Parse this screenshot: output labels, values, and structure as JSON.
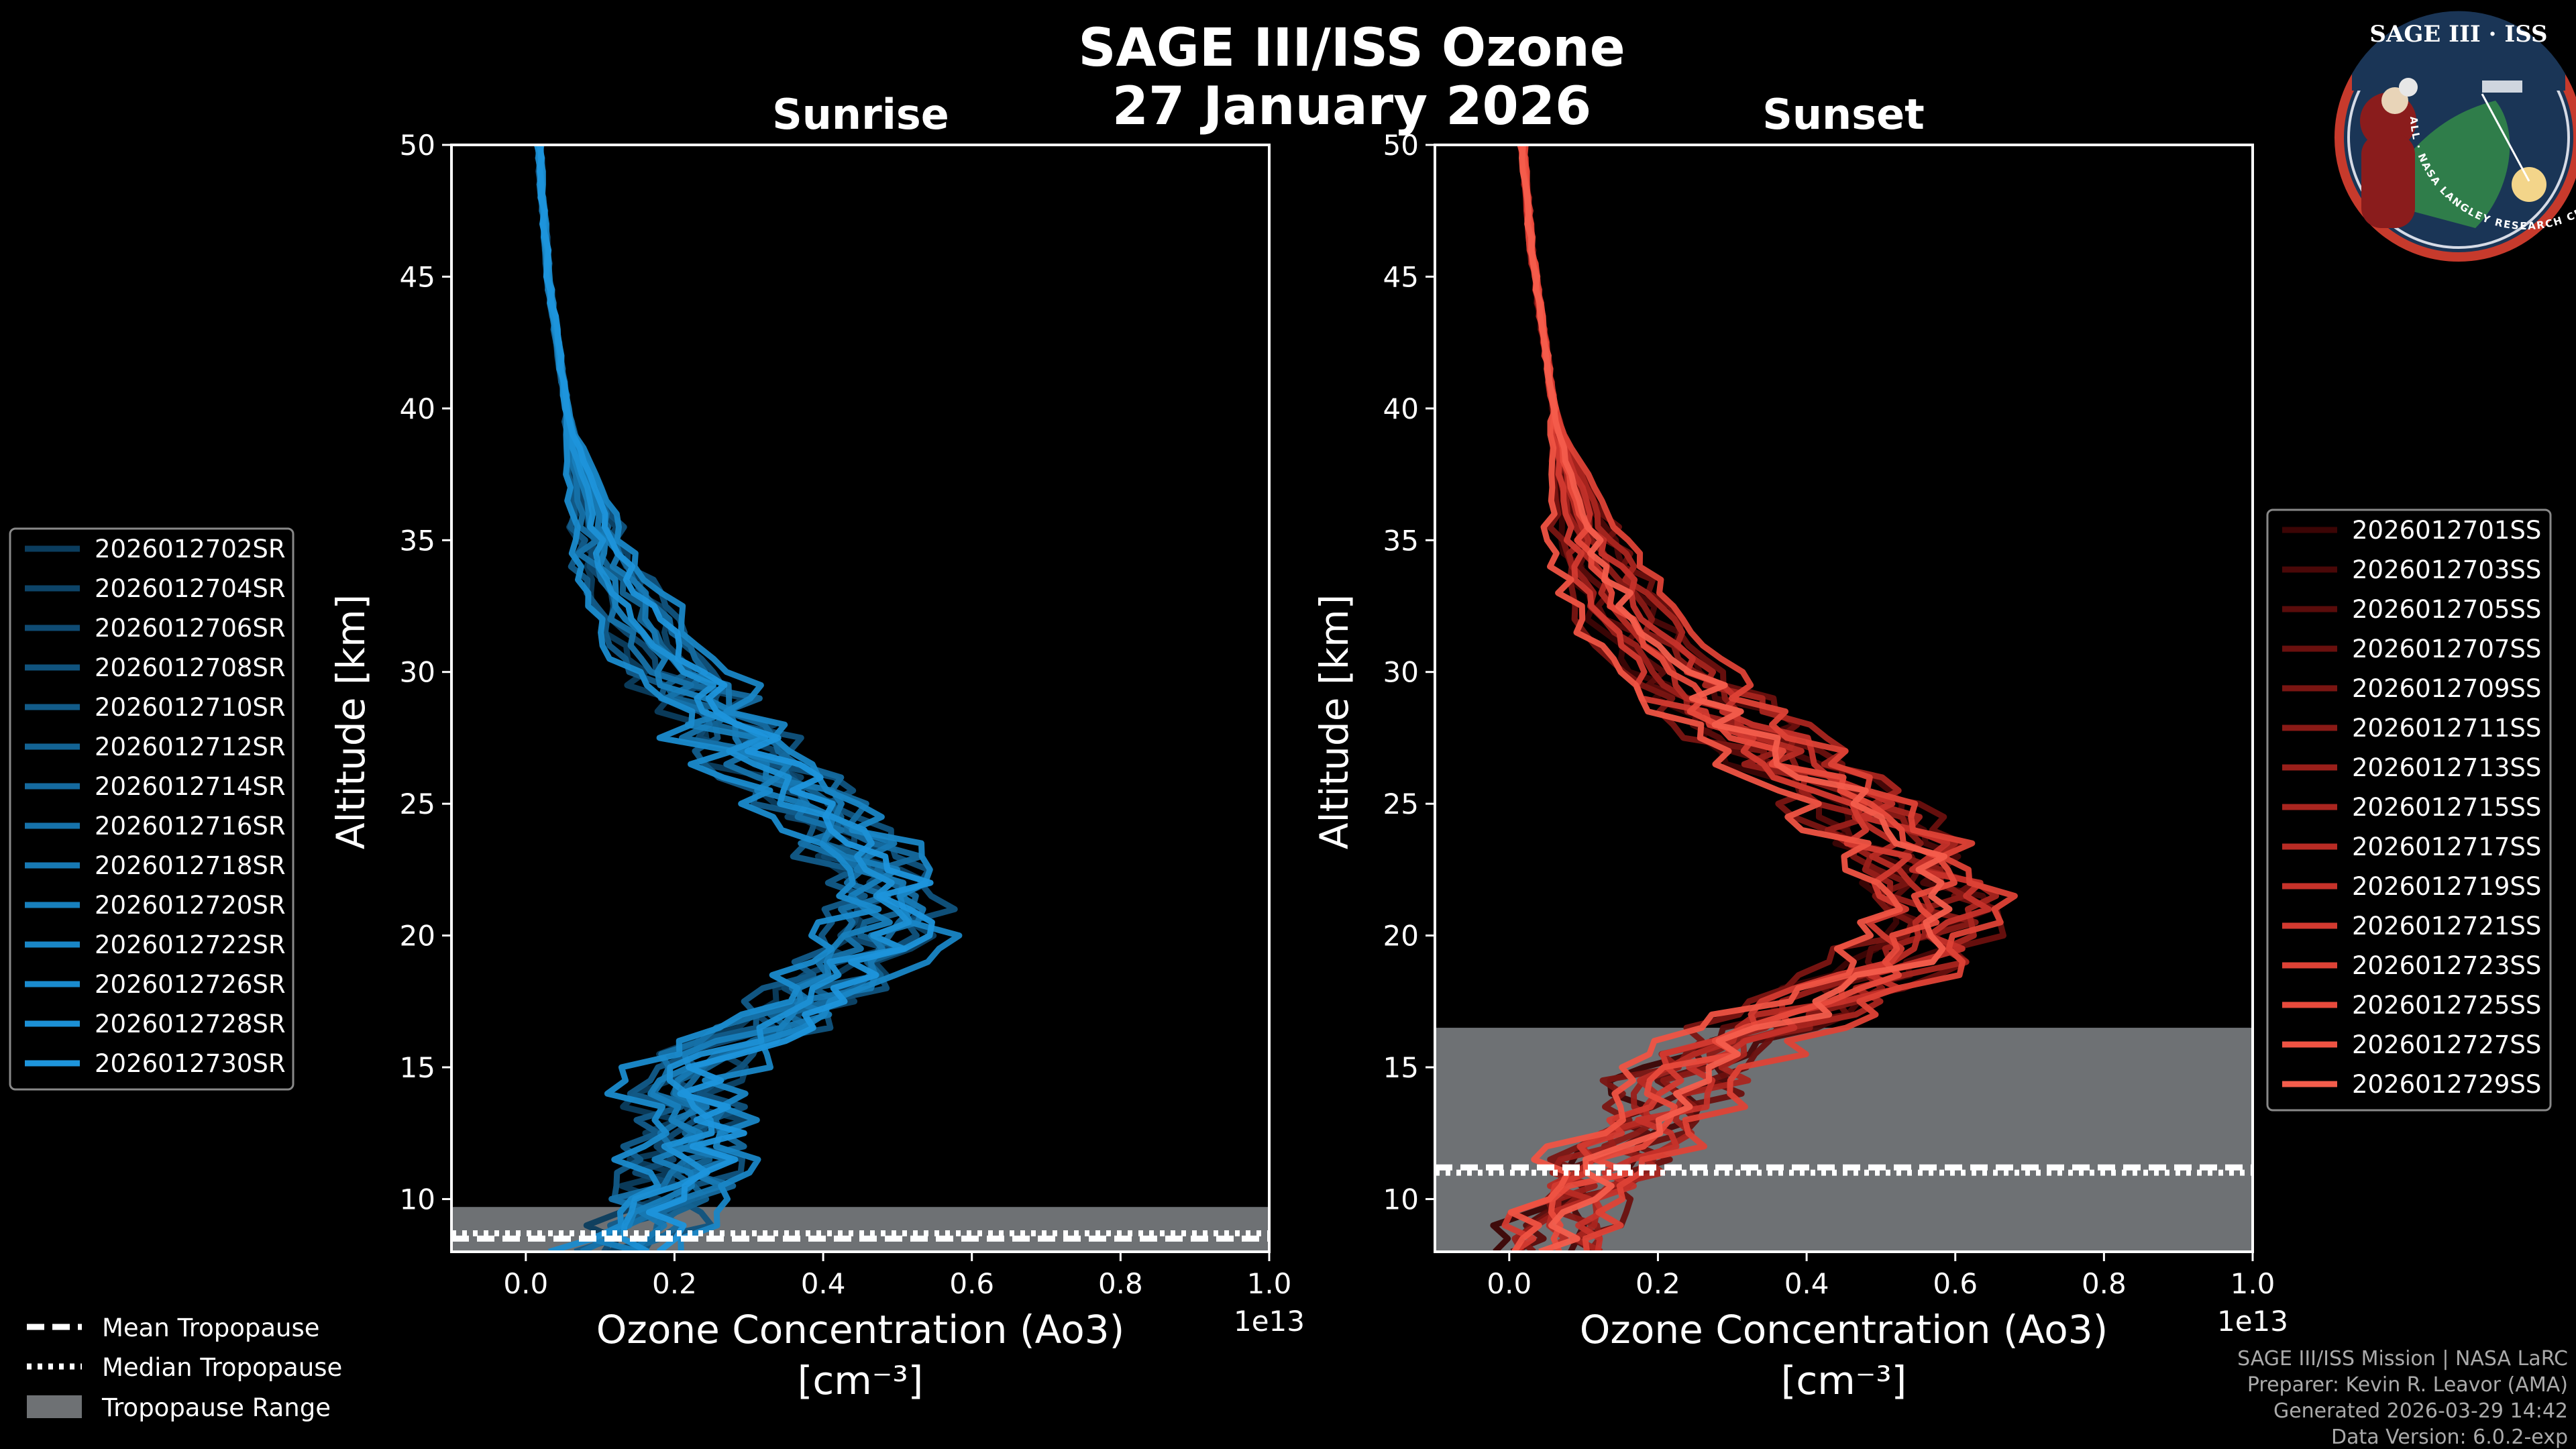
{
  "figure": {
    "title_line1": "SAGE III/ISS Ozone",
    "title_line2": "27 January 2026",
    "logo": {
      "top_text": "SAGE III · ISS",
      "ring_text": "BALL · NASA LANGLEY RESEARCH CENTER · TAS-I · ESA"
    },
    "footer": [
      "SAGE III/ISS Mission | NASA LaRC",
      "Preparer: Kevin R. Leavor (AMA)",
      "Generated 2026-03-29 14:42",
      "Data Version: 6.0.2-exp"
    ],
    "tropo_legend": [
      "Mean Tropopause",
      "Median Tropopause",
      "Tropopause Range"
    ],
    "colors": {
      "sunrise": "#1f8fd6",
      "sunset": "#f05a48",
      "tropo_band": "#6e7174",
      "background": "#000000"
    }
  },
  "chart_data": [
    {
      "type": "line",
      "title": "Sunrise",
      "xlabel": "Ozone Concentration (Ao3)",
      "xunit": "[cm⁻³]",
      "xscale_label": "1e13",
      "ylabel": "Altitude [km]",
      "xlim": [
        -0.1,
        1.0
      ],
      "ylim": [
        8,
        50
      ],
      "xticks": [
        0.0,
        0.2,
        0.4,
        0.6,
        0.8,
        1.0
      ],
      "xtick_labels": [
        "0.0",
        "0.2",
        "0.4",
        "0.6",
        "0.8",
        "1.0"
      ],
      "yticks": [
        10,
        15,
        20,
        25,
        30,
        35,
        40,
        45,
        50
      ],
      "tropopause": {
        "mean": 8.5,
        "median": 8.7,
        "range": [
          8.0,
          9.7
        ]
      },
      "base_profile": {
        "altitude": [
          8,
          9,
          10,
          11,
          12,
          13,
          14,
          15,
          16,
          17,
          18,
          19,
          20,
          21,
          22,
          23,
          24,
          25,
          26,
          27,
          28,
          29,
          30,
          31,
          32,
          33,
          34,
          35,
          36,
          37,
          38,
          39,
          40,
          41,
          42,
          43,
          44,
          45,
          46,
          47,
          48,
          49,
          50
        ],
        "ozone": [
          0.12,
          0.16,
          0.19,
          0.21,
          0.22,
          0.22,
          0.21,
          0.23,
          0.28,
          0.35,
          0.41,
          0.45,
          0.48,
          0.49,
          0.48,
          0.45,
          0.42,
          0.38,
          0.34,
          0.3,
          0.26,
          0.23,
          0.2,
          0.17,
          0.15,
          0.13,
          0.11,
          0.1,
          0.09,
          0.08,
          0.07,
          0.06,
          0.055,
          0.05,
          0.045,
          0.04,
          0.035,
          0.03,
          0.028,
          0.025,
          0.022,
          0.02,
          0.018
        ]
      },
      "series": [
        {
          "name": "2026012702SR",
          "offset": -0.04,
          "color": "#0b3d5e"
        },
        {
          "name": "2026012704SR",
          "offset": 0.03,
          "color": "#0d4468"
        },
        {
          "name": "2026012706SR",
          "offset": -0.02,
          "color": "#0f4b73"
        },
        {
          "name": "2026012708SR",
          "offset": 0.05,
          "color": "#10537e"
        },
        {
          "name": "2026012710SR",
          "offset": -0.05,
          "color": "#125b89"
        },
        {
          "name": "2026012712SR",
          "offset": 0.01,
          "color": "#136394"
        },
        {
          "name": "2026012714SR",
          "offset": 0.04,
          "color": "#156a9f"
        },
        {
          "name": "2026012716SR",
          "offset": -0.03,
          "color": "#1672aa"
        },
        {
          "name": "2026012718SR",
          "offset": 0.02,
          "color": "#1779b4"
        },
        {
          "name": "2026012720SR",
          "offset": -0.01,
          "color": "#1880bd"
        },
        {
          "name": "2026012722SR",
          "offset": 0.06,
          "color": "#1986c6"
        },
        {
          "name": "2026012726SR",
          "offset": -0.06,
          "color": "#1a8bce"
        },
        {
          "name": "2026012728SR",
          "offset": 0.0,
          "color": "#1c90d5"
        },
        {
          "name": "2026012730SR",
          "offset": 0.03,
          "color": "#1e95dc"
        }
      ]
    },
    {
      "type": "line",
      "title": "Sunset",
      "xlabel": "Ozone Concentration (Ao3)",
      "xunit": "[cm⁻³]",
      "xscale_label": "1e13",
      "ylabel": "Altitude [km]",
      "xlim": [
        -0.1,
        1.0
      ],
      "ylim": [
        8,
        50
      ],
      "xticks": [
        0.0,
        0.2,
        0.4,
        0.6,
        0.8,
        1.0
      ],
      "xtick_labels": [
        "0.0",
        "0.2",
        "0.4",
        "0.6",
        "0.8",
        "1.0"
      ],
      "yticks": [
        10,
        15,
        20,
        25,
        30,
        35,
        40,
        45,
        50
      ],
      "tropopause": {
        "mean": 11.2,
        "median": 11.0,
        "range": [
          8.0,
          16.5
        ]
      },
      "base_profile": {
        "altitude": [
          8,
          9,
          10,
          11,
          12,
          13,
          14,
          15,
          16,
          17,
          18,
          19,
          20,
          21,
          22,
          23,
          24,
          25,
          26,
          27,
          28,
          29,
          30,
          31,
          32,
          33,
          34,
          35,
          36,
          37,
          38,
          39,
          40,
          41,
          42,
          43,
          44,
          45,
          46,
          47,
          48,
          49,
          50
        ],
        "ozone": [
          0.05,
          0.07,
          0.09,
          0.12,
          0.15,
          0.18,
          0.21,
          0.25,
          0.3,
          0.38,
          0.46,
          0.52,
          0.56,
          0.57,
          0.56,
          0.54,
          0.5,
          0.46,
          0.41,
          0.36,
          0.31,
          0.26,
          0.22,
          0.19,
          0.16,
          0.14,
          0.12,
          0.105,
          0.095,
          0.085,
          0.075,
          0.065,
          0.06,
          0.055,
          0.05,
          0.045,
          0.04,
          0.035,
          0.03,
          0.027,
          0.024,
          0.021,
          0.018
        ]
      },
      "series": [
        {
          "name": "2026012701SS",
          "offset": -0.05,
          "color": "#3c0505"
        },
        {
          "name": "2026012703SS",
          "offset": 0.04,
          "color": "#4a0808"
        },
        {
          "name": "2026012705SS",
          "offset": -0.02,
          "color": "#5a0c0b"
        },
        {
          "name": "2026012707SS",
          "offset": 0.06,
          "color": "#6a100e"
        },
        {
          "name": "2026012709SS",
          "offset": -0.06,
          "color": "#7a1512"
        },
        {
          "name": "2026012711SS",
          "offset": 0.02,
          "color": "#8a1a16"
        },
        {
          "name": "2026012713SS",
          "offset": -0.03,
          "color": "#9a1f1a"
        },
        {
          "name": "2026012715SS",
          "offset": 0.05,
          "color": "#a9251f"
        },
        {
          "name": "2026012717SS",
          "offset": -0.01,
          "color": "#b82b24"
        },
        {
          "name": "2026012719SS",
          "offset": 0.03,
          "color": "#c6322a"
        },
        {
          "name": "2026012721SS",
          "offset": -0.04,
          "color": "#d33a30"
        },
        {
          "name": "2026012723SS",
          "offset": 0.08,
          "color": "#de4236"
        },
        {
          "name": "2026012725SS",
          "offset": 0.0,
          "color": "#e84a3c"
        },
        {
          "name": "2026012727SS",
          "offset": -0.07,
          "color": "#ef5343"
        },
        {
          "name": "2026012729SS",
          "offset": 0.01,
          "color": "#f45d4c"
        }
      ]
    }
  ]
}
